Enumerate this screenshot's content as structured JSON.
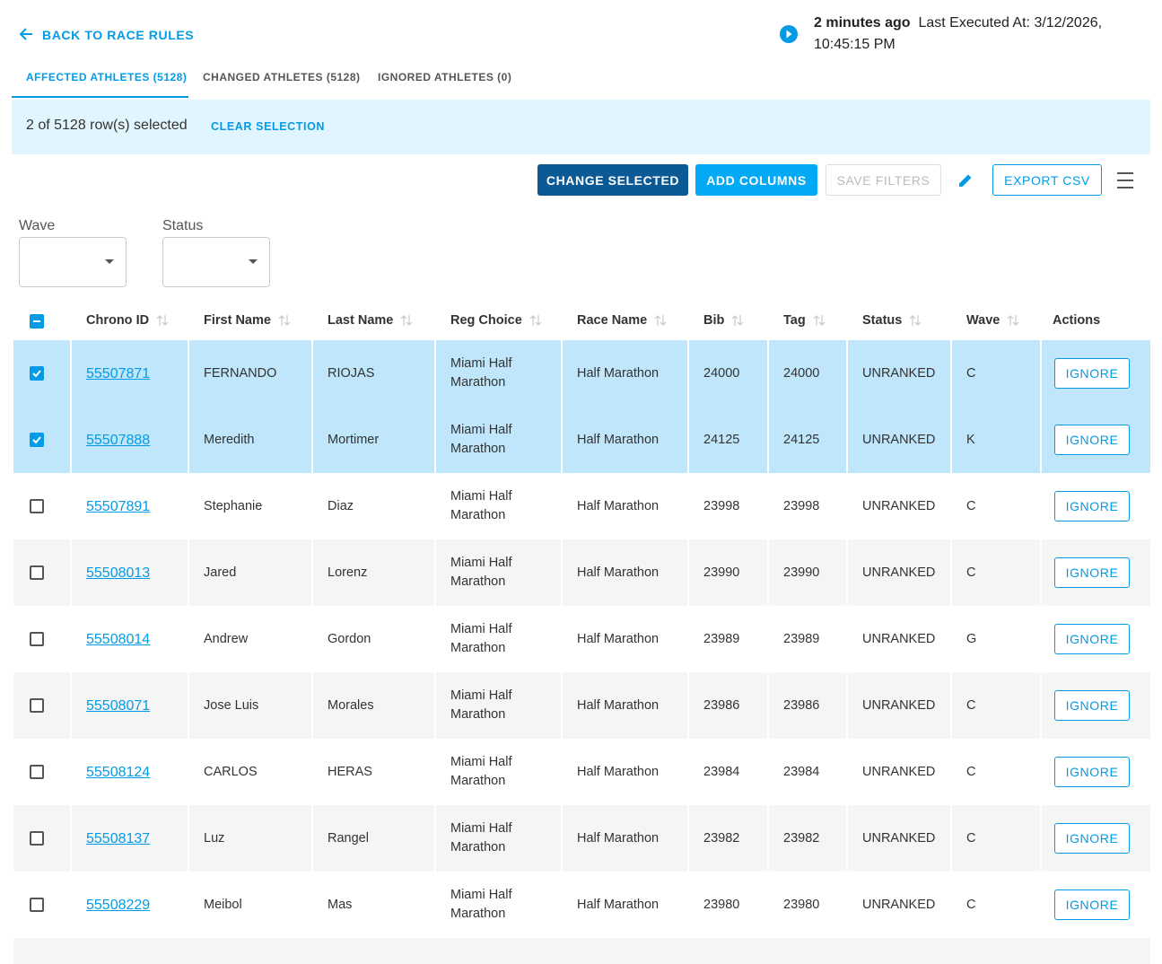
{
  "header": {
    "back": "BACK TO RACE RULES",
    "time_ago": "2 minutes ago",
    "last_executed": "Last Executed At: 3/12/2026, 10:45:15 PM"
  },
  "tabs": [
    "AFFECTED ATHLETES (5128)",
    "CHANGED ATHLETES (5128)",
    "IGNORED ATHLETES (0)"
  ],
  "selection": {
    "text": "2 of 5128 row(s) selected",
    "clear": "CLEAR SELECTION"
  },
  "toolbar": {
    "change": "CHANGE SELECTED",
    "add": "ADD COLUMNS",
    "save": "SAVE FILTERS",
    "export": "EXPORT CSV"
  },
  "filters": [
    "Wave",
    "Status"
  ],
  "table": {
    "columns": [
      "Chrono ID",
      "First Name",
      "Last Name",
      "Reg Choice",
      "Race Name",
      "Bib",
      "Tag",
      "Status",
      "Wave",
      "Actions"
    ],
    "rows": [
      [
        "55507871",
        "FERNANDO",
        "RIOJAS",
        "Miami Half Marathon",
        "Half Marathon",
        "24000",
        "24000",
        "UNRANKED",
        "C",
        "IGNORE"
      ],
      [
        "55507888",
        "Meredith",
        "Mortimer",
        "Miami Half Marathon",
        "Half Marathon",
        "24125",
        "24125",
        "UNRANKED",
        "K",
        "IGNORE"
      ],
      [
        "55507891",
        "Stephanie",
        "Diaz",
        "Miami Half Marathon",
        "Half Marathon",
        "23998",
        "23998",
        "UNRANKED",
        "C",
        "IGNORE"
      ],
      [
        "55508013",
        "Jared",
        "Lorenz",
        "Miami Half Marathon",
        "Half Marathon",
        "23990",
        "23990",
        "UNRANKED",
        "C",
        "IGNORE"
      ],
      [
        "55508014",
        "Andrew",
        "Gordon",
        "Miami Half Marathon",
        "Half Marathon",
        "23989",
        "23989",
        "UNRANKED",
        "G",
        "IGNORE"
      ],
      [
        "55508071",
        "Jose Luis",
        "Morales",
        "Miami Half Marathon",
        "Half Marathon",
        "23986",
        "23986",
        "UNRANKED",
        "C",
        "IGNORE"
      ],
      [
        "55508124",
        "CARLOS",
        "HERAS",
        "Miami Half Marathon",
        "Half Marathon",
        "23984",
        "23984",
        "UNRANKED",
        "C",
        "IGNORE"
      ],
      [
        "55508137",
        "Luz",
        "Rangel",
        "Miami Half Marathon",
        "Half Marathon",
        "23982",
        "23982",
        "UNRANKED",
        "C",
        "IGNORE"
      ],
      [
        "55508229",
        "Meibol",
        "Mas",
        "Miami Half Marathon",
        "Half Marathon",
        "23980",
        "23980",
        "UNRANKED",
        "C",
        "IGNORE"
      ]
    ],
    "selected": [
      true,
      true,
      false,
      false,
      false,
      false,
      false,
      false,
      false
    ]
  }
}
